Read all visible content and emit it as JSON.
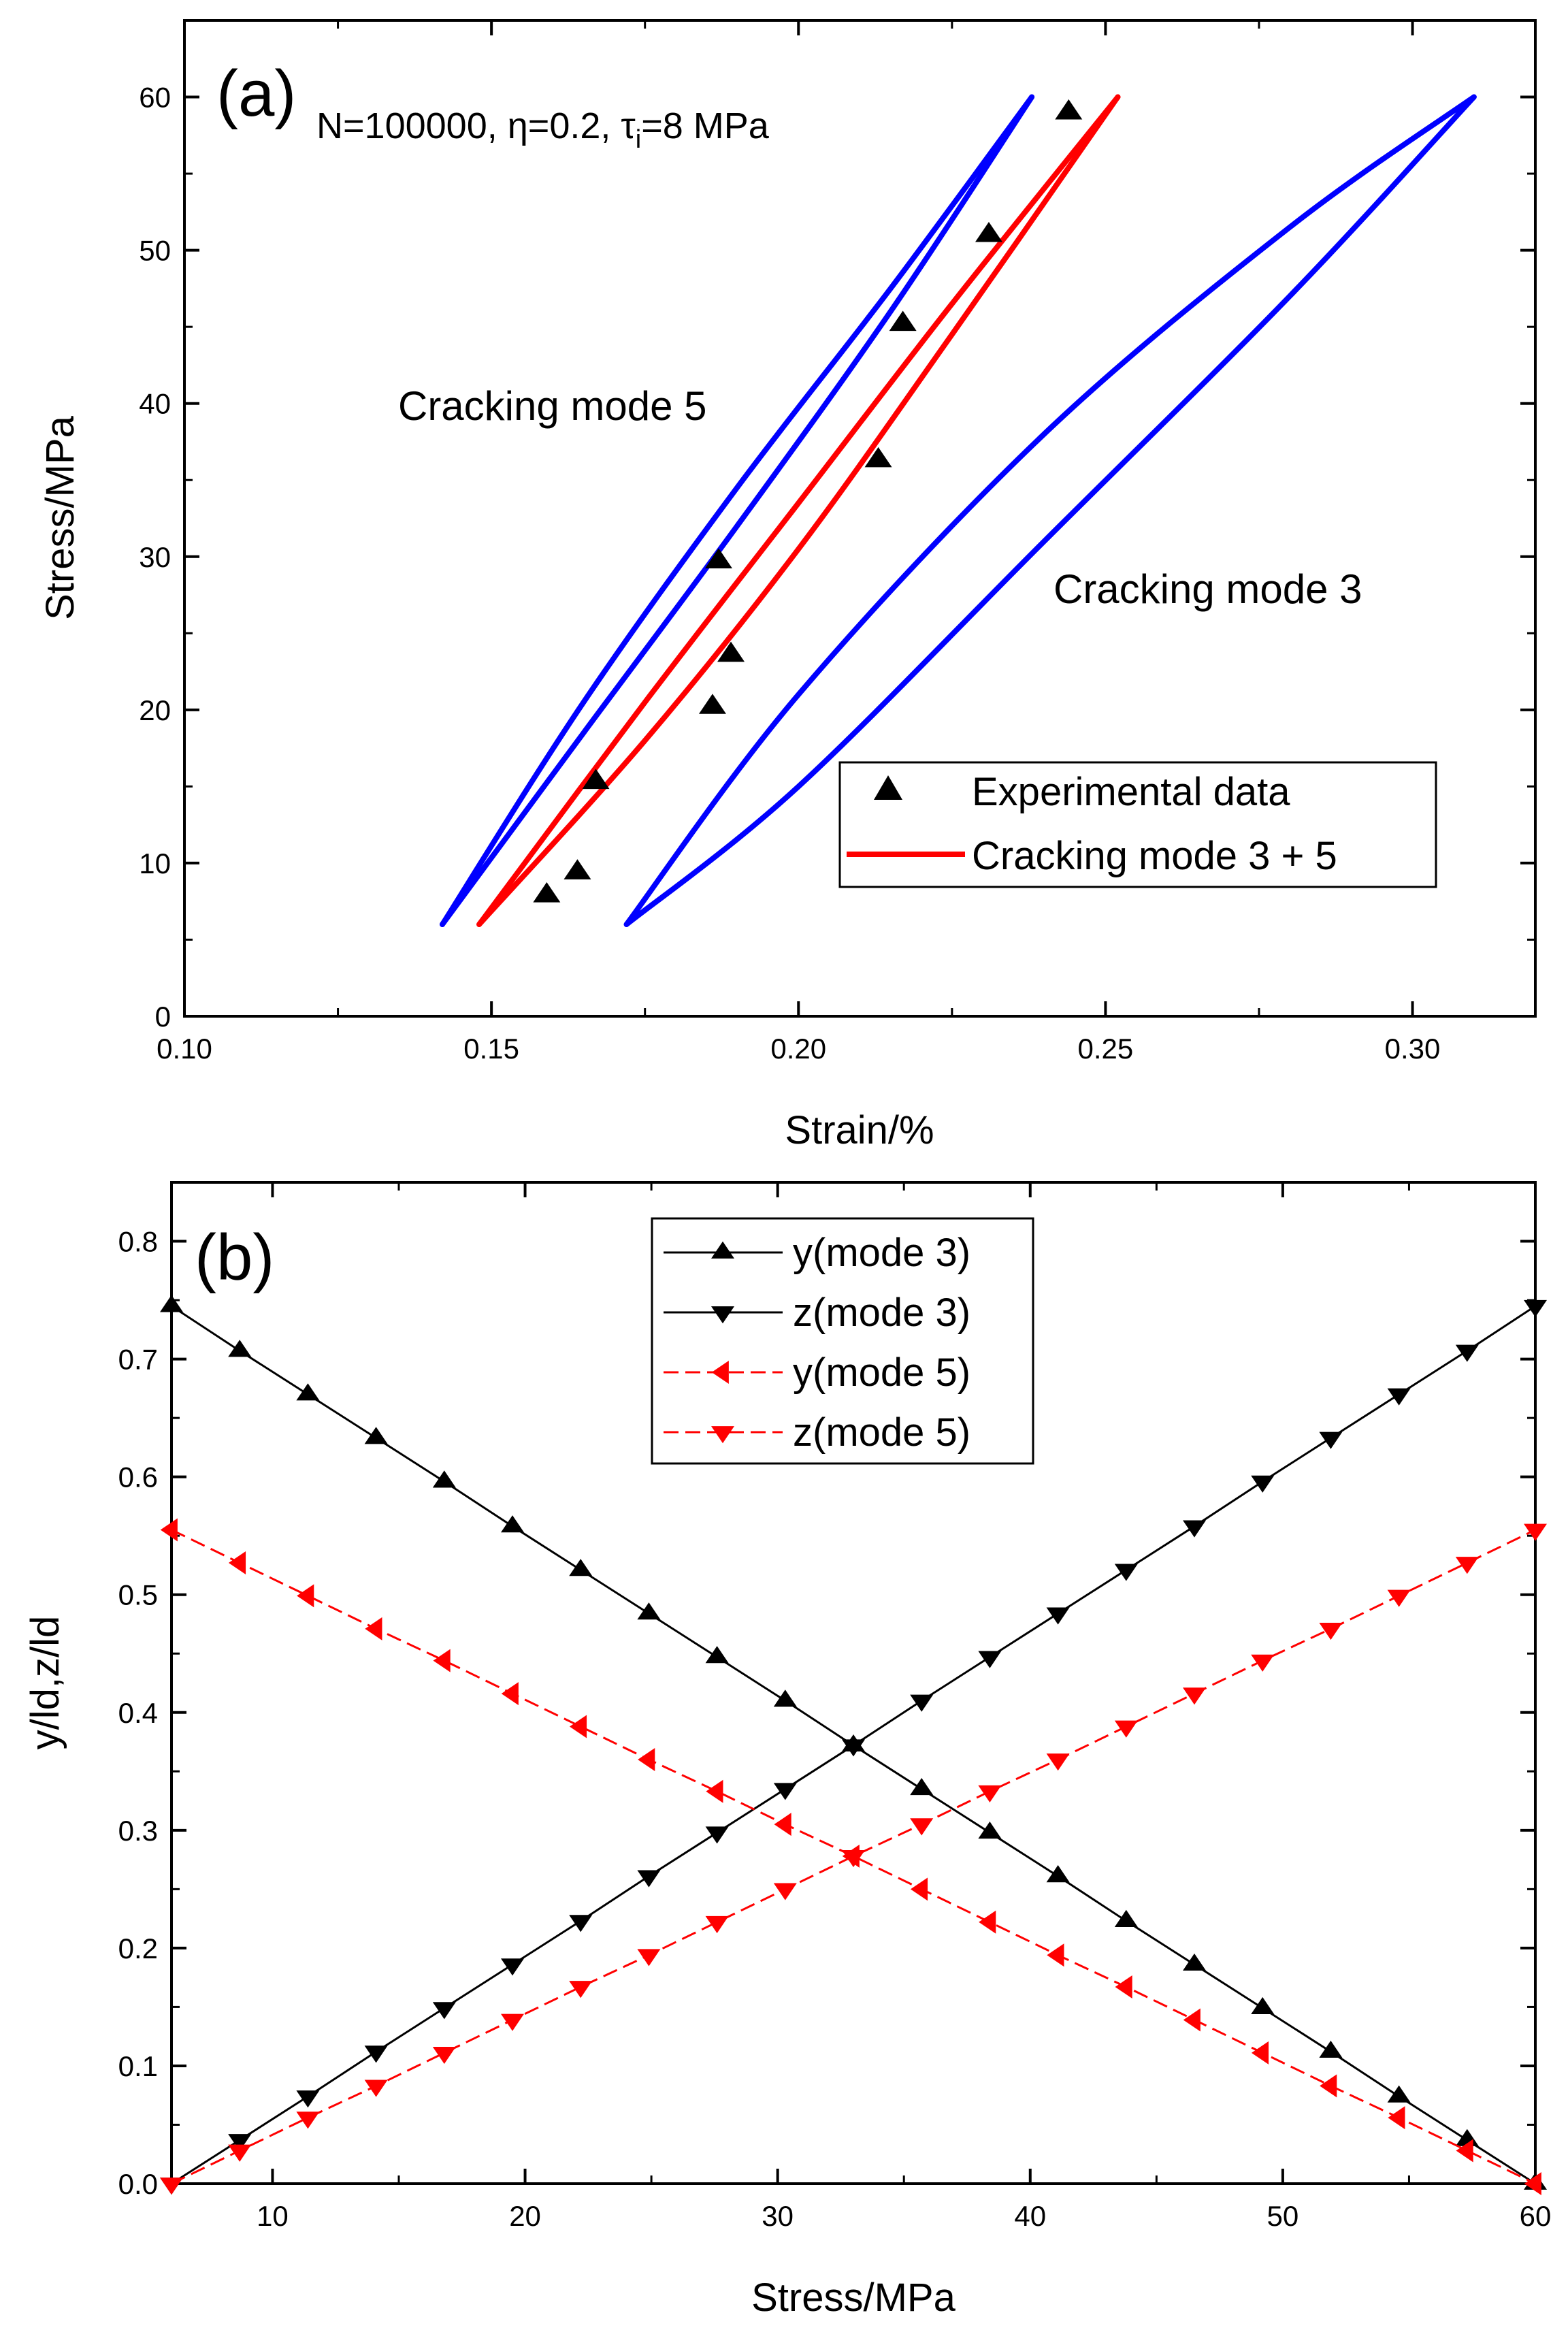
{
  "chart_data": [
    {
      "type": "line",
      "panel_label": "(a)",
      "condition": {
        "prefix": "N=100000, ",
        "eta_symbol": "η",
        "eta_value": "=0.2, ",
        "tau_symbol": "τ",
        "tau_sub": "i",
        "tau_value": "=8 MPa"
      },
      "xlabel": "Strain/%",
      "ylabel": "Stress/MPa",
      "xlim": [
        0.1,
        0.32
      ],
      "ylim": [
        0,
        65
      ],
      "xticks": [
        0.1,
        0.15,
        0.2,
        0.25,
        0.3
      ],
      "xtick_labels": [
        "0.10",
        "0.15",
        "0.20",
        "0.25",
        "0.30"
      ],
      "yticks": [
        0,
        10,
        20,
        30,
        40,
        50,
        60
      ],
      "ytick_labels": [
        "0",
        "10",
        "20",
        "30",
        "40",
        "50",
        "60"
      ],
      "annotations": [
        "Cracking mode 5",
        "Cracking mode 3"
      ],
      "series": [
        {
          "name": "Experimental data",
          "kind": "scatter",
          "marker": "triangle-up",
          "color": "#000000",
          "x": [
            0.159,
            0.164,
            0.167,
            0.186,
            0.187,
            0.189,
            0.213,
            0.217,
            0.231,
            0.244
          ],
          "y": [
            7.9,
            9.4,
            15.3,
            20.2,
            29.7,
            23.6,
            36.3,
            45.2,
            51.0,
            59.0
          ]
        },
        {
          "name": "Cracking mode 3 + 5",
          "kind": "loop",
          "color": "#ff0000",
          "x_min": 0.148,
          "y_min": 6,
          "x_max": 0.252,
          "y_max": 60,
          "upper_x": [
            0.148,
            0.175,
            0.2,
            0.225,
            0.252
          ],
          "upper_y": [
            6,
            20.5,
            33.5,
            46.5,
            60
          ],
          "lower_x": [
            0.148,
            0.175,
            0.2,
            0.225,
            0.252
          ],
          "lower_y": [
            6,
            18.0,
            30.5,
            44.5,
            60
          ]
        },
        {
          "name": "Cracking mode 5",
          "kind": "loop",
          "color": "#0000ff",
          "x_min": 0.142,
          "y_min": 6,
          "x_max": 0.238,
          "y_max": 60,
          "upper_x": [
            0.142,
            0.165,
            0.19,
            0.215,
            0.238
          ],
          "upper_y": [
            6,
            20.5,
            34.5,
            47.5,
            60
          ],
          "lower_x": [
            0.142,
            0.165,
            0.19,
            0.215,
            0.238
          ],
          "lower_y": [
            6,
            18.5,
            32.0,
            46.0,
            60
          ]
        },
        {
          "name": "Cracking mode 3",
          "kind": "loop",
          "color": "#0000ff",
          "x_min": 0.172,
          "y_min": 6,
          "x_max": 0.31,
          "y_max": 60,
          "upper_x": [
            0.172,
            0.2,
            0.24,
            0.28,
            0.31
          ],
          "upper_y": [
            6,
            21.0,
            38.0,
            51.5,
            60
          ],
          "lower_x": [
            0.172,
            0.2,
            0.24,
            0.28,
            0.31
          ],
          "lower_y": [
            6,
            15.0,
            31.0,
            47.0,
            60
          ]
        }
      ],
      "legend": {
        "position": "bottom-right",
        "entries": [
          "Experimental data",
          "Cracking mode 3 + 5"
        ]
      }
    },
    {
      "type": "line",
      "panel_label": "(b)",
      "xlabel": "Stress/MPa",
      "ylabel": "y/ld,z/ld",
      "xlim": [
        6,
        60
      ],
      "ylim": [
        0,
        0.85
      ],
      "xticks": [
        10,
        20,
        30,
        40,
        50,
        60
      ],
      "xtick_labels": [
        "10",
        "20",
        "30",
        "40",
        "50",
        "60"
      ],
      "yticks": [
        0,
        0.1,
        0.2,
        0.3,
        0.4,
        0.5,
        0.6,
        0.7,
        0.8
      ],
      "ytick_labels": [
        "0.0",
        "0.1",
        "0.2",
        "0.3",
        "0.4",
        "0.5",
        "0.6",
        "0.7",
        "0.8"
      ],
      "x": [
        6,
        8.7,
        11.4,
        14.1,
        16.8,
        19.5,
        22.2,
        24.9,
        27.6,
        30.3,
        33,
        35.7,
        38.4,
        41.1,
        43.8,
        46.5,
        49.2,
        51.9,
        54.6,
        57.3,
        60
      ],
      "series": [
        {
          "name": "y(mode 3)",
          "marker": "triangle-up",
          "color": "#000000",
          "dash": "solid",
          "values": [
            0.745,
            0.707,
            0.67,
            0.633,
            0.596,
            0.558,
            0.521,
            0.484,
            0.447,
            0.41,
            0.372,
            0.335,
            0.298,
            0.261,
            0.223,
            0.186,
            0.149,
            0.112,
            0.074,
            0.037,
            0.0
          ]
        },
        {
          "name": "z(mode 3)",
          "marker": "triangle-down",
          "color": "#000000",
          "dash": "solid",
          "values": [
            0.0,
            0.037,
            0.074,
            0.112,
            0.149,
            0.186,
            0.223,
            0.261,
            0.298,
            0.335,
            0.372,
            0.41,
            0.447,
            0.484,
            0.521,
            0.558,
            0.596,
            0.633,
            0.67,
            0.707,
            0.745
          ]
        },
        {
          "name": "y(mode 5)",
          "marker": "triangle-left",
          "color": "#ff0000",
          "dash": "dashed",
          "values": [
            0.555,
            0.527,
            0.499,
            0.471,
            0.444,
            0.416,
            0.388,
            0.36,
            0.333,
            0.305,
            0.278,
            0.25,
            0.222,
            0.194,
            0.167,
            0.139,
            0.111,
            0.083,
            0.056,
            0.028,
            0.0
          ]
        },
        {
          "name": "z(mode 5)",
          "marker": "triangle-down",
          "color": "#ff0000",
          "dash": "dashed",
          "values": [
            0.0,
            0.028,
            0.056,
            0.083,
            0.111,
            0.139,
            0.167,
            0.194,
            0.222,
            0.25,
            0.278,
            0.305,
            0.333,
            0.36,
            0.388,
            0.416,
            0.444,
            0.471,
            0.499,
            0.527,
            0.555
          ]
        }
      ],
      "legend": {
        "position": "top-center",
        "entries": [
          "y(mode 3)",
          "z(mode 3)",
          "y(mode 5)",
          "z(mode 5)"
        ]
      }
    }
  ]
}
